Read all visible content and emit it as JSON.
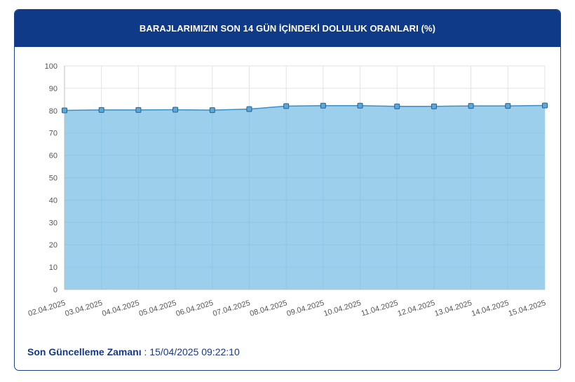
{
  "header": {
    "title": "BARAJLARIMIZIN SON 14 GÜN İÇİNDEKİ DOLULUK ORANLARI (%)"
  },
  "footer": {
    "label": "Son Güncelleme Zamanı",
    "separator": " : ",
    "value": "15/04/2025 09:22:10"
  },
  "colors": {
    "header_bg": "#0f3a87",
    "area_fill": "#9ccfec",
    "line": "#3a8fc4",
    "marker": "#5aa8d8"
  },
  "chart_data": {
    "type": "area",
    "categories": [
      "02.04.2025",
      "03.04.2025",
      "04.04.2025",
      "05.04.2025",
      "06.04.2025",
      "07.04.2025",
      "08.04.2025",
      "09.04.2025",
      "10.04.2025",
      "11.04.2025",
      "12.04.2025",
      "13.04.2025",
      "14.04.2025",
      "15.04.2025"
    ],
    "values": [
      80.1,
      80.3,
      80.3,
      80.4,
      80.2,
      80.7,
      82.0,
      82.2,
      82.2,
      81.9,
      81.9,
      82.1,
      82.1,
      82.3
    ],
    "ylim": [
      0,
      100
    ],
    "yticks": [
      0,
      10,
      20,
      30,
      40,
      50,
      60,
      70,
      80,
      90,
      100
    ],
    "grid": true,
    "legend": "none"
  }
}
